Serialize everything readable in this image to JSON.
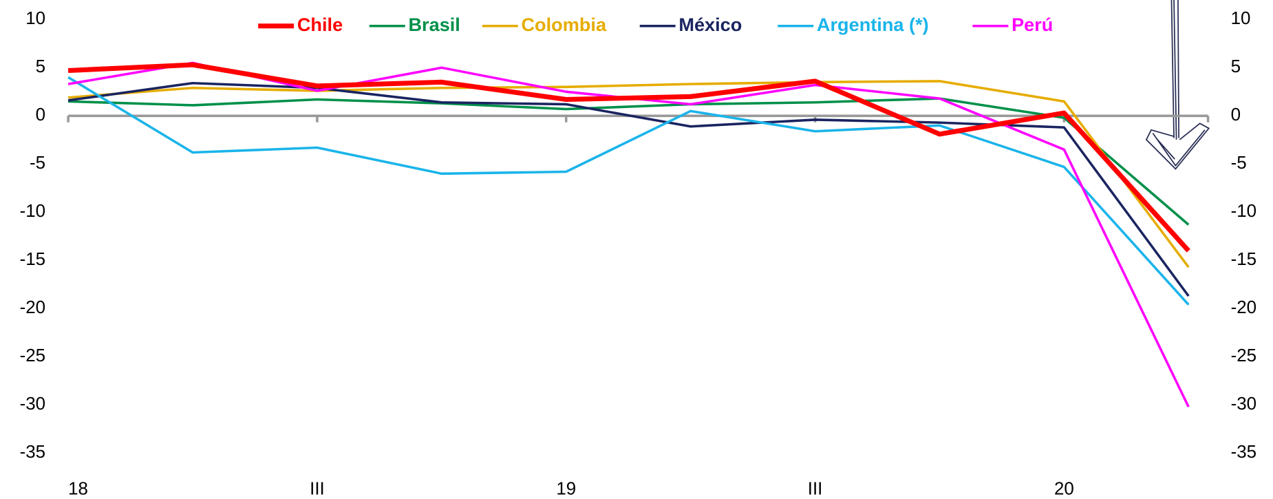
{
  "chart_data": {
    "type": "line",
    "categories": [
      "18",
      null,
      "III",
      null,
      "19",
      null,
      "III",
      null,
      "20",
      null
    ],
    "series": [
      {
        "name": "Chile",
        "color": "#ff0000",
        "values": [
          4.7,
          5.3,
          3.1,
          3.5,
          1.7,
          2.0,
          3.6,
          -1.9,
          0.3,
          -14.0
        ]
      },
      {
        "name": "Brasil",
        "color": "#00904a",
        "values": [
          1.5,
          1.1,
          1.7,
          1.3,
          0.7,
          1.2,
          1.4,
          1.8,
          -0.2,
          -11.3
        ]
      },
      {
        "name": "Colombia",
        "color": "#e6ac00",
        "values": [
          1.9,
          2.9,
          2.6,
          2.9,
          3.0,
          3.3,
          3.5,
          3.6,
          1.5,
          -15.7
        ]
      },
      {
        "name": "México",
        "color": "#1a2460",
        "values": [
          1.6,
          3.4,
          2.9,
          1.4,
          1.2,
          -1.1,
          -0.4,
          -0.7,
          -1.2,
          -18.7
        ]
      },
      {
        "name": "Argentina (*)",
        "color": "#1ab4ea",
        "values": [
          4.0,
          -3.8,
          -3.3,
          -6.0,
          -5.8,
          0.5,
          -1.6,
          -1.0,
          -5.3,
          -19.6
        ]
      },
      {
        "name": "Perú",
        "color": "#ff00ff",
        "values": [
          3.3,
          5.5,
          2.6,
          5.0,
          2.5,
          1.2,
          3.2,
          1.8,
          -3.5,
          -30.2
        ]
      }
    ],
    "ylim": [
      -35,
      10
    ],
    "yticks": [
      -35,
      -30,
      -25,
      -20,
      -15,
      -10,
      -5,
      0,
      5,
      10
    ],
    "y2lim": [
      -35,
      10
    ],
    "y2ticks": [
      -35,
      -30,
      -25,
      -20,
      -15,
      -10,
      -5,
      0,
      5,
      10
    ],
    "legend": "top"
  }
}
